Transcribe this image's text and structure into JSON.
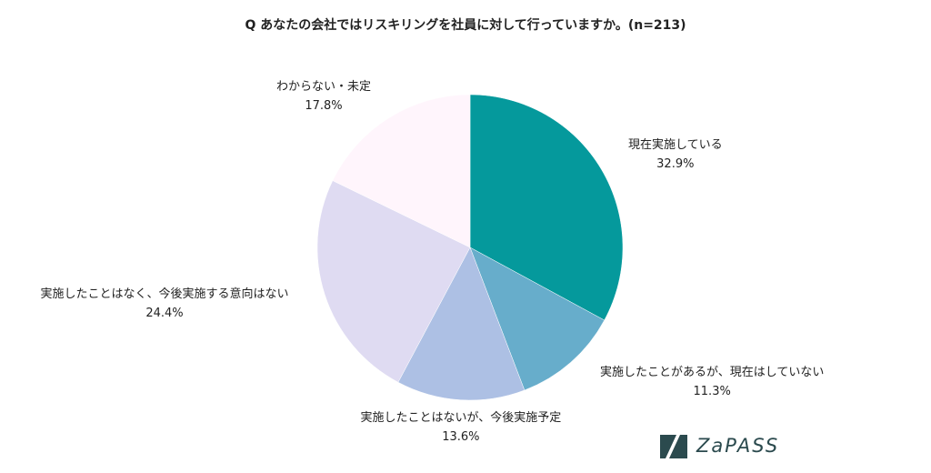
{
  "chart_data": {
    "type": "pie",
    "title": "Q あなたの会社ではリスキリングを社員に対して行っていますか。(n=213)",
    "slices": [
      {
        "label": "現在実施している",
        "value": 32.9,
        "value_label": "32.9%",
        "color": "#05999c"
      },
      {
        "label": "実施したことがあるが、現在はしていない",
        "value": 11.3,
        "value_label": "11.3%",
        "color": "#67adcb"
      },
      {
        "label": "実施したことはないが、今後実施予定",
        "value": 13.6,
        "value_label": "13.6%",
        "color": "#adc0e4"
      },
      {
        "label": "実施したことはなく、今後実施する意向はない",
        "value": 24.4,
        "value_label": "24.4%",
        "color": "#dfdbf2"
      },
      {
        "label": "わからない・未定",
        "value": 17.8,
        "value_label": "17.8%",
        "color": "#fff5fc"
      }
    ],
    "start_angle": "12 o'clock",
    "direction": "clockwise",
    "legend": "none"
  },
  "logo": {
    "text": "ZaPASS",
    "color": "#2b4a4e"
  }
}
